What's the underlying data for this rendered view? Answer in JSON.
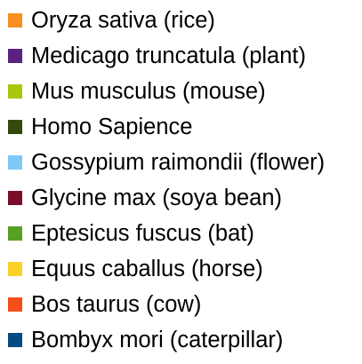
{
  "chart_data": {
    "type": "legend",
    "legend": [
      {
        "label": "Oryza sativa (rice)",
        "color": "#F7901E"
      },
      {
        "label": "Medicago truncatula (plant)",
        "color": "#5B2181"
      },
      {
        "label": "Mus musculus (mouse)",
        "color": "#A8C80F"
      },
      {
        "label": "Homo Sapience",
        "color": "#35490D"
      },
      {
        "label": "Gossypium raimondii (flower)",
        "color": "#7FC8F8"
      },
      {
        "label": "Glycine max (soya bean)",
        "color": "#7A0E2A"
      },
      {
        "label": "Eptesicus fuscus (bat)",
        "color": "#58A024"
      },
      {
        "label": "Equus caballus (horse)",
        "color": "#FBD127"
      },
      {
        "label": "Bos taurus (cow)",
        "color": "#F54E19"
      },
      {
        "label": "Bombyx mori (caterpillar)",
        "color": "#064A82"
      }
    ]
  }
}
